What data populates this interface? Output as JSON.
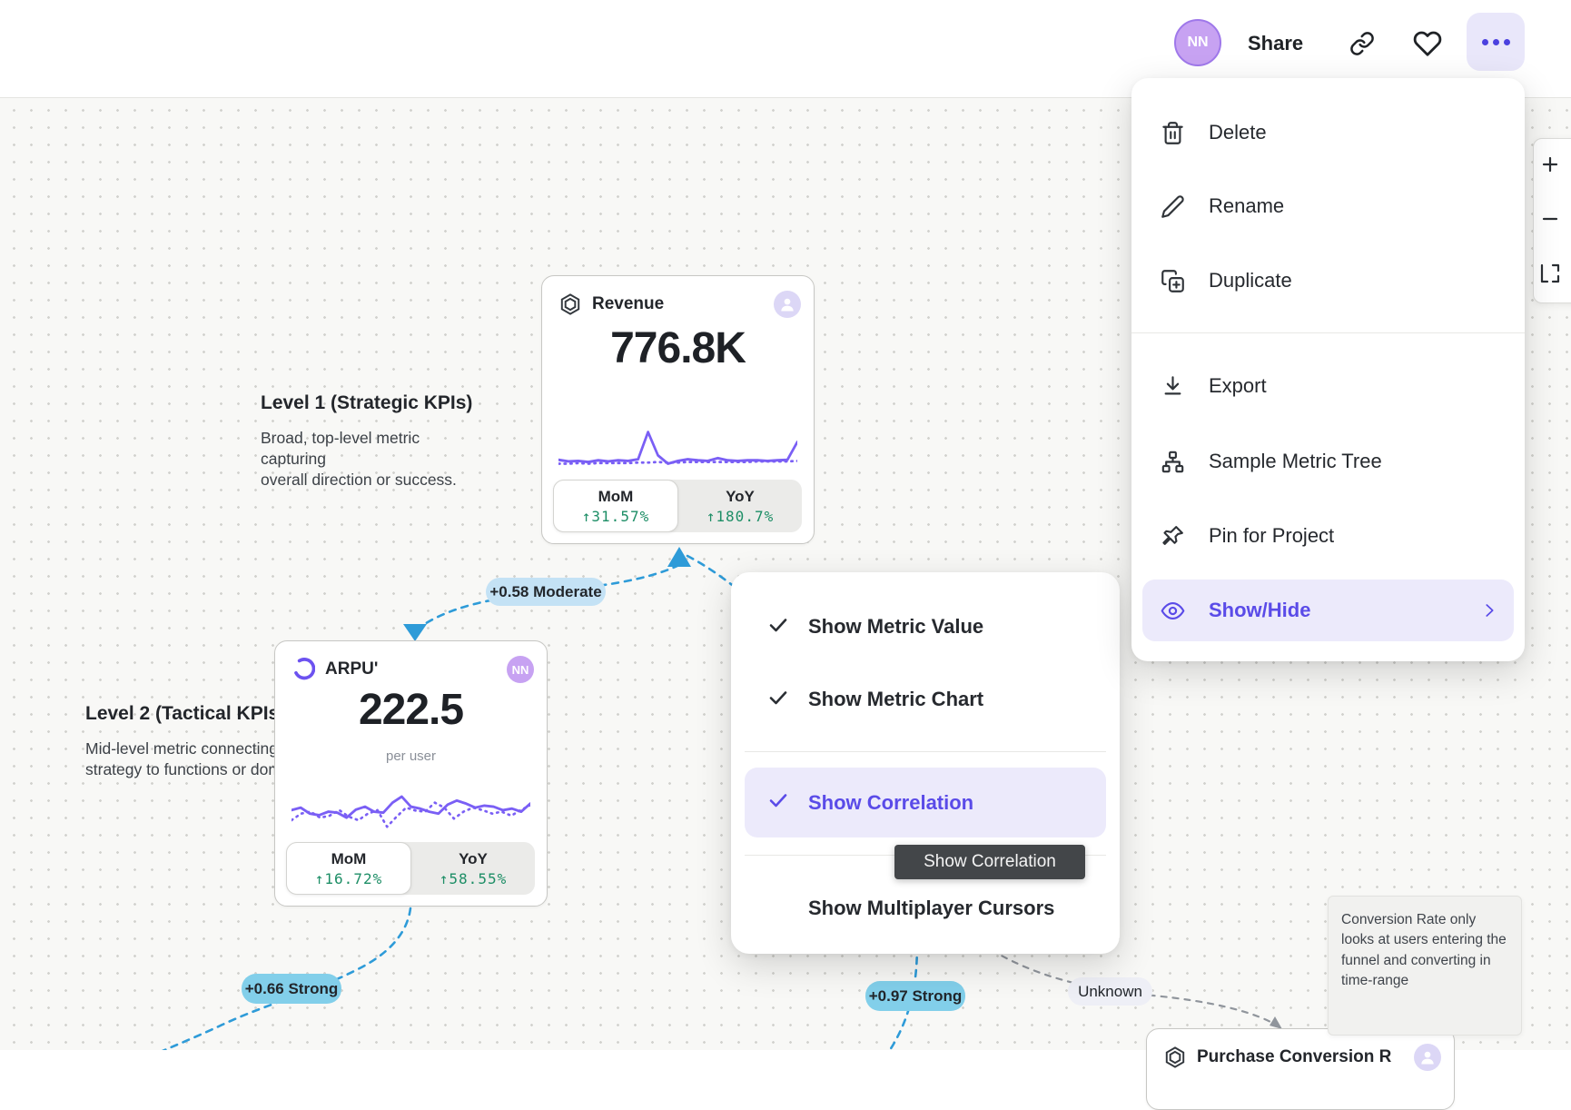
{
  "colors": {
    "accent": "#5A4BE8",
    "accent_bg": "#ECEAFB",
    "blue_edge": "#2E9BD8",
    "gray_edge": "#90959C",
    "green": "#1D8E66",
    "sparkline_purple": "#7A5FF5",
    "strong_badge": "#82CFEA",
    "moderate_badge": "#C4E2F5",
    "unknown_badge": "#EEEFF6",
    "avatar_purple": "#C7A2F2",
    "tooltip_bg": "#434649"
  },
  "topbar": {
    "avatar_initials": "NN",
    "share_label": "Share"
  },
  "menu": {
    "items": [
      {
        "label": "Delete",
        "icon": "trash-icon"
      },
      {
        "label": "Rename",
        "icon": "pencil-icon"
      },
      {
        "label": "Duplicate",
        "icon": "duplicate-icon"
      },
      {
        "label": "Export",
        "icon": "download-icon"
      },
      {
        "label": "Sample Metric Tree",
        "icon": "metric-tree-icon"
      },
      {
        "label": "Pin for Project",
        "icon": "pin-icon"
      },
      {
        "label": "Show/Hide",
        "icon": "eye-icon",
        "active": true
      }
    ]
  },
  "submenu": {
    "items": [
      {
        "label": "Show Metric Value",
        "checked": true
      },
      {
        "label": "Show Metric Chart",
        "checked": true
      },
      {
        "label": "Show Correlation",
        "checked": true,
        "active": true
      },
      {
        "label": "Show Multiplayer Cursors",
        "checked": false
      }
    ]
  },
  "tooltip": {
    "text": "Show Correlation"
  },
  "cards": {
    "revenue": {
      "title": "Revenue",
      "value": "776.8K",
      "mom_label": "MoM",
      "mom_value": "↑31.57%",
      "yoy_label": "YoY",
      "yoy_value": "↑180.7%",
      "sparkline": {
        "solid": [
          14,
          11,
          12,
          10,
          13,
          11,
          13,
          12,
          15,
          64,
          22,
          7,
          12,
          15,
          13,
          12,
          17,
          13,
          12,
          13,
          13,
          12,
          13,
          14,
          46
        ],
        "dotted": [
          7,
          7,
          8,
          7,
          8,
          8,
          8,
          8,
          9,
          9,
          10,
          9,
          9,
          10,
          10,
          10,
          10,
          10,
          10,
          10,
          11,
          11,
          11,
          11,
          12
        ]
      }
    },
    "arpu": {
      "title": "ARPU'",
      "badge": "NN",
      "value": "222.5",
      "unit": "per user",
      "mom_label": "MoM",
      "mom_value": "↑16.72%",
      "yoy_label": "YoY",
      "yoy_value": "↑58.55%",
      "sparkline": {
        "solid": [
          45,
          50,
          38,
          35,
          42,
          40,
          30,
          46,
          52,
          42,
          40,
          60,
          72,
          52,
          48,
          42,
          38,
          56,
          64,
          58,
          50,
          54,
          52,
          45,
          48,
          42,
          58
        ],
        "dotted": [
          25,
          38,
          42,
          30,
          34,
          45,
          32,
          25,
          38,
          45,
          12,
          32,
          50,
          44,
          42,
          60,
          50,
          28,
          42,
          50,
          45,
          38,
          42,
          34,
          45,
          55
        ]
      }
    },
    "purchase": {
      "title": "Purchase Conversion R"
    }
  },
  "annotations": {
    "level1": {
      "title": "Level 1 (Strategic KPIs)",
      "body1": "Broad, top-level metric capturing",
      "body2": "overall direction or success."
    },
    "level2": {
      "title": "Level 2 (Tactical KPIs",
      "body1": "Mid-level metric connecting",
      "body2": "strategy to functions or doma"
    }
  },
  "badges": [
    {
      "label": "+0.58 Moderate",
      "strength": "moderate"
    },
    {
      "label": "+0.66 Strong",
      "strength": "strong"
    },
    {
      "label": "+0.97 Strong",
      "strength": "strong"
    },
    {
      "label": "Unknown",
      "strength": "unknown"
    }
  ],
  "note": {
    "text": "Conversion Rate only looks at users entering the funnel and converting in time-range"
  }
}
